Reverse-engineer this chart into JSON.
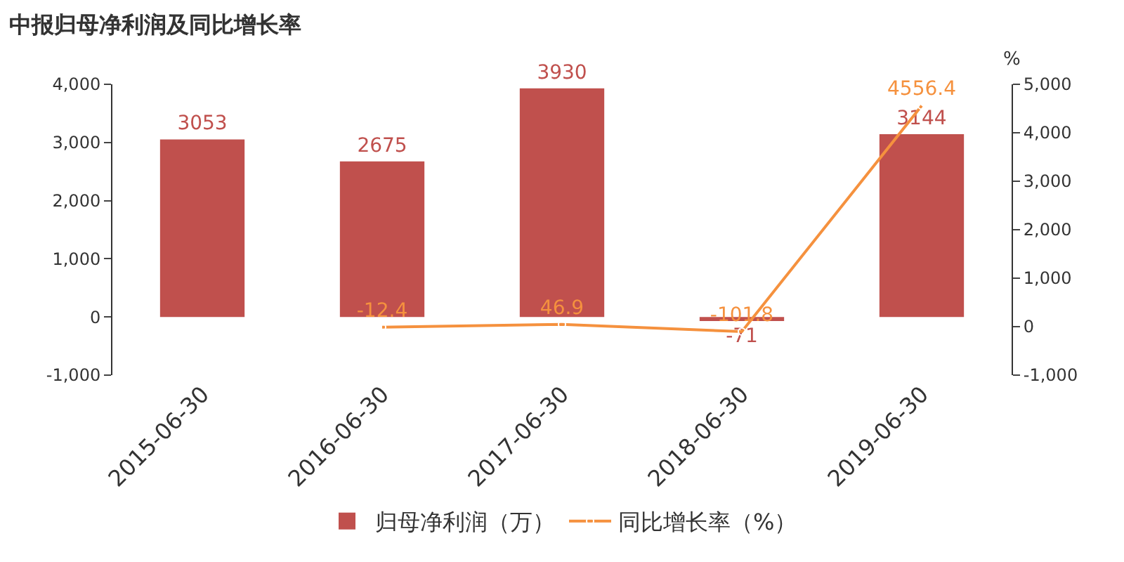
{
  "chart_data": {
    "type": "bar",
    "title": "中报归母净利润及同比增长率",
    "y2label": "%",
    "categories": [
      "2015-06-30",
      "2016-06-30",
      "2017-06-30",
      "2018-06-30",
      "2019-06-30"
    ],
    "series": [
      {
        "name": "归母净利润（万）",
        "color": "#c0504d",
        "values": [
          3053,
          2675,
          3930,
          -71,
          3144
        ]
      },
      {
        "name": "同比增长率（%）",
        "type": "line",
        "axis": "y2",
        "color": "#f5913e",
        "marker": "circle",
        "values": [
          null,
          -12.4,
          46.9,
          -101.8,
          4556.4
        ]
      }
    ],
    "ylim": [
      -1000,
      4000
    ],
    "yticks": [
      {
        "value": -1000,
        "label": "-1,000"
      },
      0,
      {
        "value": 1000,
        "label": "1,000"
      },
      {
        "value": 2000,
        "label": "2,000"
      },
      {
        "value": 3000,
        "label": "3,000"
      },
      {
        "value": 4000,
        "label": "4,000"
      }
    ],
    "y2lim": [
      -1000,
      5000
    ],
    "y2ticks": [
      {
        "value": -1000,
        "label": "-1,000"
      },
      0,
      {
        "value": 1000,
        "label": "1,000"
      },
      {
        "value": 2000,
        "label": "2,000"
      },
      {
        "value": 3000,
        "label": "3,000"
      },
      {
        "value": 4000,
        "label": "4,000"
      },
      {
        "value": 5000,
        "label": "5,000"
      }
    ],
    "data_labels": true,
    "grid": false,
    "legend": "bottom"
  }
}
